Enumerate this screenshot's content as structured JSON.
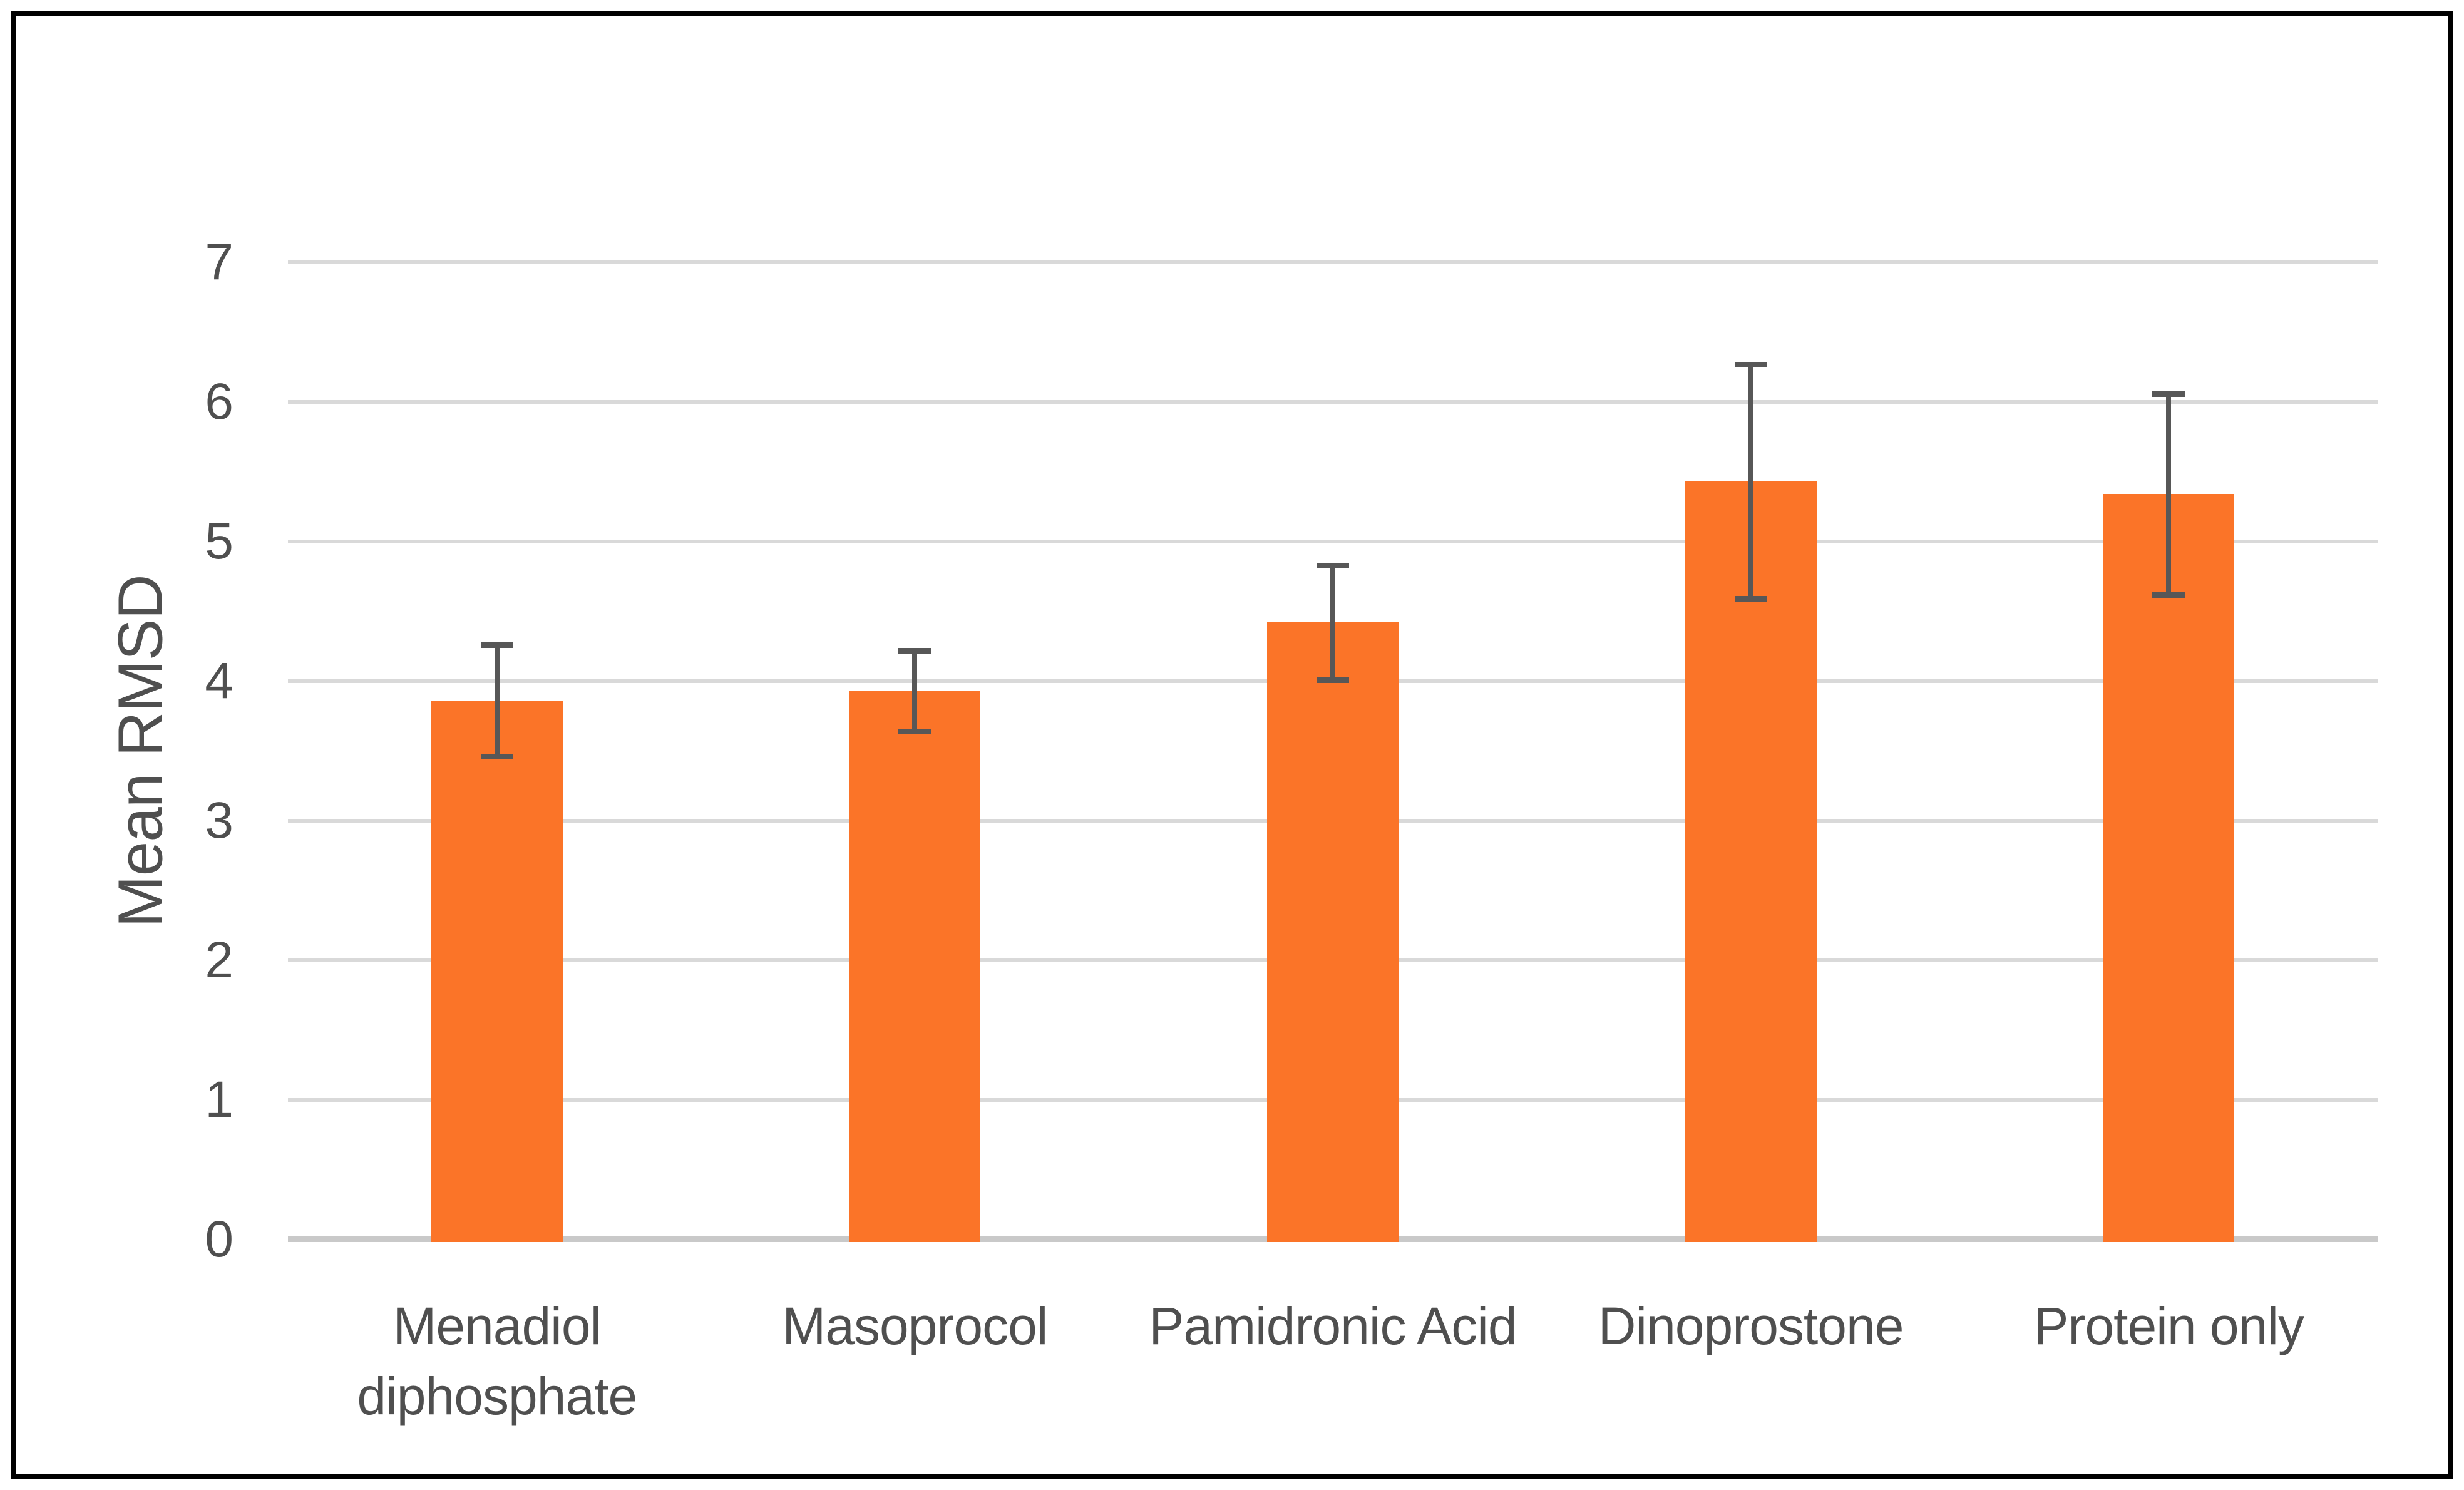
{
  "chart_data": {
    "type": "bar",
    "title": "",
    "xlabel": "",
    "ylabel": "Mean RMSD",
    "categories": [
      "Menadiol diphosphate",
      "Masoprocol",
      "Pamidronic Acid",
      "Dinoprostone",
      "Protein only"
    ],
    "values": [
      3.86,
      3.93,
      4.42,
      5.43,
      5.34
    ],
    "errors": [
      0.4,
      0.29,
      0.41,
      0.84,
      0.72
    ],
    "ylim": [
      0,
      7
    ],
    "yticks": [
      0,
      1,
      2,
      3,
      4,
      5,
      6,
      7
    ],
    "grid": true,
    "legend": false,
    "colors": {
      "bar_fill": "#FB7428",
      "error_bar": "#575757",
      "gridline": "#D9D9D9",
      "axis_line": "#C9C9C9",
      "label_text": "#4F4F4F",
      "figure_border": "#000000",
      "background": "#FFFFFF"
    }
  }
}
